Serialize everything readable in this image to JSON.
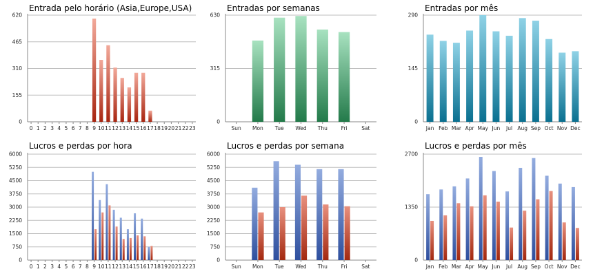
{
  "chart_data": [
    {
      "type": "bar",
      "title": "Entrada pelo horário (Asia,Europe,USA)",
      "categories": [
        "0",
        "1",
        "2",
        "3",
        "4",
        "5",
        "6",
        "7",
        "8",
        "9",
        "10",
        "11",
        "12",
        "13",
        "14",
        "15",
        "16",
        "17",
        "18",
        "19",
        "20",
        "21",
        "22",
        "23"
      ],
      "series": [
        {
          "values": [
            0,
            0,
            0,
            0,
            0,
            0,
            0,
            0,
            0,
            600,
            360,
            445,
            315,
            255,
            200,
            285,
            285,
            65,
            0,
            0,
            0,
            0,
            0,
            0
          ]
        }
      ],
      "yticks": [
        0,
        155,
        310,
        465,
        620
      ],
      "ylim": [
        0,
        620
      ],
      "style": "red",
      "grid": true
    },
    {
      "type": "bar",
      "title": "Entradas por semanas",
      "categories": [
        "Sun",
        "Mon",
        "Tue",
        "Wed",
        "Thu",
        "Fri",
        "Sat"
      ],
      "series": [
        {
          "values": [
            0,
            480,
            615,
            625,
            545,
            530,
            0
          ]
        }
      ],
      "yticks": [
        0,
        315,
        630
      ],
      "ylim": [
        0,
        630
      ],
      "style": "green",
      "grid": true
    },
    {
      "type": "bar",
      "title": "Entradas por mês",
      "categories": [
        "Jan",
        "Feb",
        "Mar",
        "Apr",
        "May",
        "Jun",
        "Jul",
        "Aug",
        "Sep",
        "Oct",
        "Nov",
        "Dec"
      ],
      "series": [
        {
          "values": [
            237,
            220,
            215,
            248,
            290,
            246,
            234,
            282,
            275,
            225,
            188,
            192
          ]
        }
      ],
      "yticks": [
        0,
        145,
        290
      ],
      "ylim": [
        0,
        290
      ],
      "style": "teal",
      "grid": true
    },
    {
      "type": "bar",
      "title": "Lucros e perdas por hora",
      "categories": [
        "0",
        "1",
        "2",
        "3",
        "4",
        "5",
        "6",
        "7",
        "8",
        "9",
        "10",
        "11",
        "12",
        "13",
        "14",
        "15",
        "16",
        "17",
        "18",
        "19",
        "20",
        "21",
        "22",
        "23"
      ],
      "series": [
        {
          "values": [
            0,
            0,
            0,
            0,
            0,
            0,
            0,
            0,
            0,
            5000,
            3400,
            4300,
            2850,
            2400,
            1750,
            2650,
            2350,
            750,
            0,
            0,
            0,
            0,
            0,
            0
          ]
        },
        {
          "values": [
            0,
            0,
            0,
            0,
            0,
            0,
            0,
            0,
            0,
            1750,
            2700,
            3100,
            1900,
            1200,
            1250,
            1400,
            1350,
            800,
            0,
            0,
            0,
            0,
            0,
            0
          ]
        }
      ],
      "yticks": [
        0,
        750,
        1500,
        2250,
        3000,
        3750,
        4500,
        5250,
        6000
      ],
      "ylim": [
        0,
        6000
      ],
      "style": "pair",
      "grid": true
    },
    {
      "type": "bar",
      "title": "Lucros e perdas por semana",
      "categories": [
        "Sun",
        "Mon",
        "Tue",
        "Wed",
        "Thu",
        "Fri",
        "Sat"
      ],
      "series": [
        {
          "values": [
            0,
            4100,
            5600,
            5400,
            5150,
            5150,
            0
          ]
        },
        {
          "values": [
            0,
            2700,
            3000,
            3650,
            3150,
            3050,
            0
          ]
        }
      ],
      "yticks": [
        0,
        750,
        1500,
        2250,
        3000,
        3750,
        4500,
        5250,
        6000
      ],
      "ylim": [
        0,
        6000
      ],
      "style": "pair",
      "grid": true
    },
    {
      "type": "bar",
      "title": "Lucros e perdas por mês",
      "categories": [
        "Jan",
        "Feb",
        "Mar",
        "Apr",
        "May",
        "Jun",
        "Jul",
        "Aug",
        "Sep",
        "Oct",
        "Nov",
        "Dec"
      ],
      "series": [
        {
          "values": [
            1680,
            1800,
            1880,
            2080,
            2630,
            2270,
            1750,
            2350,
            2600,
            2150,
            1950,
            1860
          ]
        },
        {
          "values": [
            1000,
            1140,
            1450,
            1370,
            1650,
            1490,
            830,
            1260,
            1550,
            1760,
            960,
            820
          ]
        }
      ],
      "yticks": [
        0,
        1350,
        2700
      ],
      "ylim": [
        0,
        2700
      ],
      "style": "pair",
      "grid": true
    }
  ]
}
